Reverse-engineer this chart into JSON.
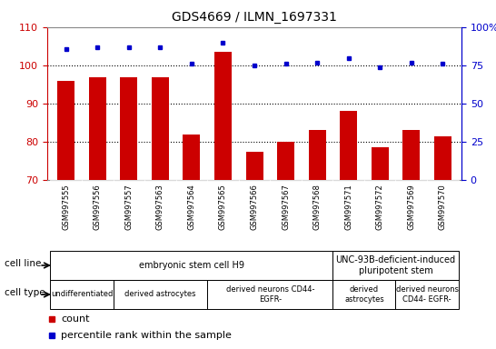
{
  "title": "GDS4669 / ILMN_1697331",
  "samples": [
    "GSM997555",
    "GSM997556",
    "GSM997557",
    "GSM997563",
    "GSM997564",
    "GSM997565",
    "GSM997566",
    "GSM997567",
    "GSM997568",
    "GSM997571",
    "GSM997572",
    "GSM997569",
    "GSM997570"
  ],
  "counts": [
    96.0,
    97.0,
    97.0,
    97.0,
    82.0,
    103.5,
    77.5,
    80.0,
    83.0,
    88.0,
    78.5,
    83.0,
    81.5
  ],
  "percentile_values": [
    86,
    87,
    87,
    87,
    76,
    90,
    75,
    76,
    77,
    80,
    74,
    77,
    76
  ],
  "ylim_left": [
    70,
    110
  ],
  "ylim_right": [
    0,
    100
  ],
  "yticks_left": [
    70,
    80,
    90,
    100,
    110
  ],
  "yticks_right": [
    0,
    25,
    50,
    75,
    100
  ],
  "bar_color": "#cc0000",
  "percentile_color": "#0000cc",
  "bar_bottom": 70,
  "cell_line_groups": [
    {
      "label": "embryonic stem cell H9",
      "start": 0,
      "end": 8,
      "color": "#aaeaaa"
    },
    {
      "label": "UNC-93B-deficient-induced\npluripotent stem",
      "start": 9,
      "end": 12,
      "color": "#44dd44"
    }
  ],
  "cell_type_groups": [
    {
      "label": "undifferentiated",
      "start": 0,
      "end": 1,
      "color": "#ee99ee"
    },
    {
      "label": "derived astrocytes",
      "start": 2,
      "end": 4,
      "color": "#ee99ee"
    },
    {
      "label": "derived neurons CD44-\nEGFR-",
      "start": 5,
      "end": 8,
      "color": "#dd55dd"
    },
    {
      "label": "derived\nastrocytes",
      "start": 9,
      "end": 10,
      "color": "#ee99ee"
    },
    {
      "label": "derived neurons\nCD44- EGFR-",
      "start": 11,
      "end": 12,
      "color": "#dd55dd"
    }
  ],
  "legend_count_color": "#cc0000",
  "legend_percentile_color": "#0000cc",
  "right_axis_color": "#0000cc",
  "left_axis_color": "#cc0000",
  "tick_bg_color": "#cccccc",
  "plot_bg_color": "#ffffff",
  "fig_width": 5.46,
  "fig_height": 3.84,
  "dpi": 100
}
